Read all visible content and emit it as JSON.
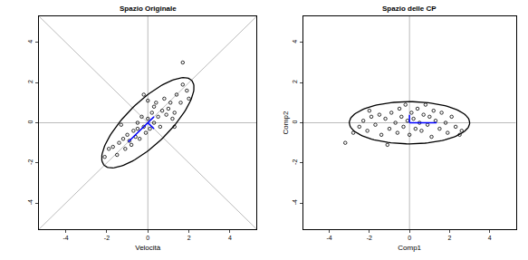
{
  "chart_data": [
    {
      "type": "scatter",
      "title": "Spazio Originale",
      "x_label": "Velocità",
      "xlim": [
        -5.3,
        5.3
      ],
      "ylim": [
        -5.3,
        5.3
      ],
      "xticks": [
        -4,
        -2,
        0,
        2,
        4
      ],
      "yticks": [
        -4,
        -2,
        0,
        2,
        4
      ],
      "color": "#000000",
      "marker": "open_circle",
      "x": [
        -2.1,
        -1.9,
        -1.7,
        -1.5,
        -1.4,
        -1.2,
        -1.1,
        -1.0,
        -0.9,
        -0.8,
        -0.7,
        -0.6,
        -0.5,
        -0.5,
        -0.4,
        -0.3,
        -0.2,
        -0.1,
        0.0,
        0.0,
        0.1,
        0.2,
        0.3,
        0.3,
        0.4,
        0.5,
        0.6,
        0.7,
        0.8,
        0.9,
        1.0,
        1.1,
        1.2,
        1.3,
        1.4,
        1.6,
        1.7,
        1.7,
        1.9,
        2.0,
        1.3,
        -0.2,
        -1.3
      ],
      "y": [
        -1.7,
        -1.3,
        -1.2,
        -1.6,
        -1.0,
        -0.8,
        -1.3,
        -0.6,
        -0.9,
        -1.1,
        -0.4,
        -0.7,
        0.0,
        -0.3,
        -0.8,
        0.3,
        -0.2,
        -0.5,
        0.2,
        1.1,
        -0.3,
        0.5,
        0.0,
        0.8,
        1.0,
        0.3,
        -0.2,
        0.6,
        1.2,
        0.4,
        0.7,
        1.0,
        0.2,
        0.5,
        1.4,
        1.0,
        1.9,
        3.0,
        1.6,
        1.2,
        -0.2,
        1.4,
        -0.1
      ],
      "ellipse": {
        "center": [
          0,
          0
        ],
        "radii": [
          3.0,
          1.05
        ],
        "angle": 45
      },
      "ref_lines": {
        "h": [
          0
        ],
        "v": [
          0
        ],
        "slopes": [
          1,
          -1
        ]
      },
      "vectors": {
        "color": "#0000ff",
        "segments": [
          [
            0,
            0,
            -0.95,
            -0.95
          ],
          [
            0,
            0,
            0.3,
            0.3
          ],
          [
            0,
            0,
            0.3,
            -0.3
          ]
        ]
      }
    },
    {
      "type": "scatter",
      "title": "Spazio delle CP",
      "x_label": "Comp1",
      "y_label": "Comp2",
      "xlim": [
        -5.3,
        5.3
      ],
      "ylim": [
        -5.3,
        5.3
      ],
      "xticks": [
        -4,
        -2,
        0,
        2,
        4
      ],
      "yticks": [
        -4,
        -2,
        0,
        2,
        4
      ],
      "color": "#000000",
      "marker": "open_circle",
      "x": [
        -3.2,
        -2.8,
        -2.5,
        -2.3,
        -2.1,
        -1.9,
        -1.7,
        -1.5,
        -1.4,
        -1.2,
        -1.1,
        -1.0,
        -0.9,
        -0.7,
        -0.6,
        -0.5,
        -0.4,
        -0.3,
        -0.2,
        -0.1,
        0.0,
        0.1,
        0.2,
        0.3,
        0.4,
        0.5,
        0.6,
        0.7,
        0.8,
        0.9,
        1.0,
        1.1,
        1.2,
        1.3,
        1.5,
        1.6,
        1.8,
        1.9,
        2.1,
        2.3,
        2.5,
        2.6,
        -2.0
      ],
      "y": [
        -1.0,
        -0.5,
        -0.2,
        0.1,
        -0.4,
        0.3,
        -0.1,
        0.4,
        -0.6,
        0.2,
        -1.1,
        -0.3,
        0.5,
        0.0,
        -0.5,
        0.7,
        0.3,
        -0.2,
        0.9,
        0.1,
        -0.6,
        0.5,
        0.2,
        -0.3,
        0.7,
        0.0,
        -0.4,
        0.4,
        0.9,
        -0.1,
        0.3,
        -0.7,
        0.6,
        0.1,
        -0.3,
        0.5,
        0.0,
        -0.5,
        0.3,
        -0.2,
        -0.6,
        -0.4,
        0.6
      ],
      "ellipse": {
        "center": [
          0,
          0
        ],
        "radii": [
          3.0,
          1.05
        ],
        "angle": 0
      },
      "ref_lines": {
        "h": [
          0
        ],
        "v": [
          0
        ],
        "slopes": []
      },
      "vectors": {
        "color": "#0000ff",
        "segments": [
          [
            0,
            0,
            1.35,
            0
          ],
          [
            0,
            0,
            0,
            0.4
          ]
        ]
      }
    }
  ]
}
